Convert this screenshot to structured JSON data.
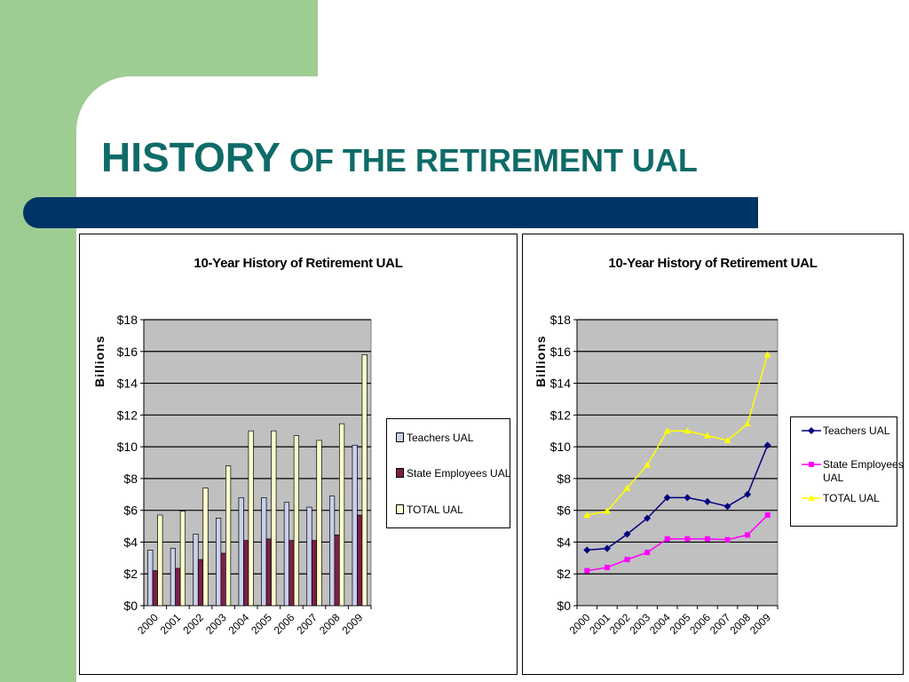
{
  "slide": {
    "title_big": "HISTORY",
    "title_rest": " OF THE RETIREMENT UAL"
  },
  "colors": {
    "title": "#0e6b68",
    "band": "#003466",
    "corner": "#9ecd93",
    "plot_bg": "#c0c0c0"
  },
  "chart_data": [
    {
      "type": "bar",
      "title": "10-Year History of Retirement UAL",
      "ylabel": "Billions",
      "xlabel": "",
      "categories": [
        "2000",
        "2001",
        "2002",
        "2003",
        "2004",
        "2005",
        "2006",
        "2007",
        "2008",
        "2009"
      ],
      "yticks": [
        "$0",
        "$2",
        "$4",
        "$6",
        "$8",
        "$10",
        "$12",
        "$14",
        "$16",
        "$18"
      ],
      "ylim": [
        0,
        18
      ],
      "grid": true,
      "legend_position": "right",
      "series": [
        {
          "name": "Teachers UAL",
          "color": "#c8d0ec",
          "values": [
            3.5,
            3.6,
            4.5,
            5.5,
            6.8,
            6.8,
            6.5,
            6.2,
            6.9,
            10.1
          ]
        },
        {
          "name": "State Employees UAL",
          "color": "#7a2048",
          "values": [
            2.2,
            2.35,
            2.9,
            3.3,
            4.1,
            4.2,
            4.1,
            4.1,
            4.45,
            5.7
          ]
        },
        {
          "name": "TOTAL UAL",
          "color": "#ffffcc",
          "values": [
            5.7,
            5.95,
            7.4,
            8.8,
            11.0,
            11.0,
            10.7,
            10.4,
            11.45,
            15.8
          ]
        }
      ]
    },
    {
      "type": "line",
      "title": "10-Year History of Retirement UAL",
      "ylabel": "Billions",
      "xlabel": "",
      "categories": [
        "2000",
        "2001",
        "2002",
        "2003",
        "2004",
        "2005",
        "2006",
        "2007",
        "2008",
        "2009"
      ],
      "yticks": [
        "$0",
        "$2",
        "$4",
        "$6",
        "$8",
        "$10",
        "$12",
        "$14",
        "$16",
        "$18"
      ],
      "ylim": [
        0,
        18
      ],
      "grid": true,
      "legend_position": "right",
      "series": [
        {
          "name": "Teachers UAL",
          "color": "#000080",
          "marker": "diamond",
          "values": [
            3.5,
            3.6,
            4.5,
            5.5,
            6.8,
            6.8,
            6.55,
            6.25,
            7.0,
            10.1
          ]
        },
        {
          "name": "State Employees UAL",
          "color": "#ff00ff",
          "marker": "square",
          "values": [
            2.2,
            2.4,
            2.9,
            3.35,
            4.2,
            4.2,
            4.2,
            4.15,
            4.45,
            5.7
          ]
        },
        {
          "name": "TOTAL UAL",
          "color": "#ffff00",
          "marker": "triangle",
          "values": [
            5.7,
            5.95,
            7.4,
            8.85,
            11.0,
            11.0,
            10.7,
            10.4,
            11.45,
            15.8
          ]
        }
      ]
    }
  ]
}
